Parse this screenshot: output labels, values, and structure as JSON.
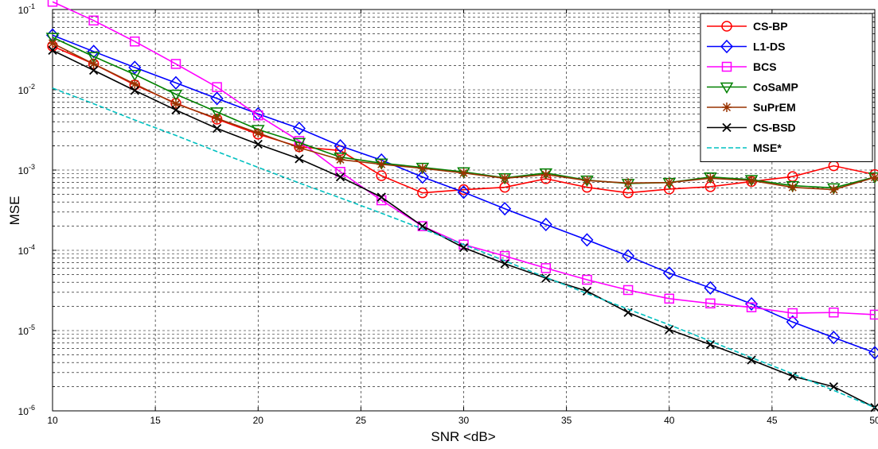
{
  "chart_data": {
    "type": "line",
    "xlabel": "SNR <dB>",
    "ylabel": "MSE",
    "xlim": [
      10,
      50
    ],
    "ylim": [
      1e-06,
      0.1
    ],
    "yscale": "log",
    "x_ticks": [
      10,
      15,
      20,
      25,
      30,
      35,
      40,
      45,
      50
    ],
    "y_ticks": [
      {
        "base": "10",
        "exp": "-6",
        "value": 1e-06
      },
      {
        "base": "10",
        "exp": "-5",
        "value": 1e-05
      },
      {
        "base": "10",
        "exp": "-4",
        "value": 0.0001
      },
      {
        "base": "10",
        "exp": "-3",
        "value": 0.001
      },
      {
        "base": "10",
        "exp": "-2",
        "value": 0.01
      },
      {
        "base": "10",
        "exp": "-1",
        "value": 0.1
      }
    ],
    "grid": true,
    "legend_position": "top-right",
    "x": [
      10,
      12,
      14,
      16,
      18,
      20,
      22,
      24,
      26,
      28,
      30,
      32,
      34,
      36,
      38,
      40,
      42,
      44,
      46,
      48,
      50
    ],
    "series": [
      {
        "name": "CS-BP",
        "color": "#ff0000",
        "marker": "circle",
        "dash": "solid",
        "values": [
          0.035,
          0.021,
          0.0115,
          0.0068,
          0.0043,
          0.0028,
          0.00195,
          0.00175,
          0.00085,
          0.00052,
          0.00057,
          0.00061,
          0.00078,
          0.00061,
          0.00052,
          0.00058,
          0.00062,
          0.00072,
          0.00083,
          0.00113,
          0.00088
        ]
      },
      {
        "name": "L1-DS",
        "color": "#0000ff",
        "marker": "diamond",
        "dash": "solid",
        "values": [
          0.048,
          0.03,
          0.019,
          0.0122,
          0.0078,
          0.005,
          0.0033,
          0.002,
          0.00133,
          0.00082,
          0.00053,
          0.00033,
          0.00021,
          0.000135,
          8.5e-05,
          5.2e-05,
          3.4e-05,
          2.15e-05,
          1.28e-05,
          8.2e-06,
          5.3e-06
        ]
      },
      {
        "name": "BCS",
        "color": "#ff00ff",
        "marker": "square",
        "dash": "solid",
        "values": [
          0.125,
          0.073,
          0.04,
          0.021,
          0.0108,
          0.0048,
          0.0023,
          0.00095,
          0.00042,
          0.0002,
          0.000118,
          8.5e-05,
          6e-05,
          4.3e-05,
          3.2e-05,
          2.5e-05,
          2.18e-05,
          1.95e-05,
          1.65e-05,
          1.68e-05,
          1.58e-05
        ]
      },
      {
        "name": "CoSaMP",
        "color": "#008000",
        "marker": "triangle-down",
        "dash": "solid",
        "values": [
          0.045,
          0.026,
          0.0155,
          0.0088,
          0.0053,
          0.0032,
          0.0022,
          0.00145,
          0.00122,
          0.00108,
          0.00095,
          0.0008,
          0.00092,
          0.00075,
          0.00068,
          0.0007,
          0.00082,
          0.00076,
          0.00064,
          0.0006,
          0.00082
        ]
      },
      {
        "name": "SuPrEM",
        "color": "#993300",
        "marker": "asterisk",
        "dash": "solid",
        "values": [
          0.038,
          0.021,
          0.0118,
          0.0067,
          0.0044,
          0.0029,
          0.0019,
          0.00135,
          0.00118,
          0.00105,
          0.00092,
          0.00079,
          0.00088,
          0.00074,
          0.00069,
          0.0007,
          0.00079,
          0.00074,
          0.00061,
          0.00057,
          0.00081
        ]
      },
      {
        "name": "CS-BSD",
        "color": "#000000",
        "marker": "x",
        "dash": "solid",
        "values": [
          0.031,
          0.0175,
          0.0098,
          0.0056,
          0.0033,
          0.0021,
          0.00138,
          0.00082,
          0.00046,
          0.0002,
          0.000108,
          6.8e-05,
          4.5e-05,
          3.1e-05,
          1.68e-05,
          1.03e-05,
          6.7e-06,
          4.3e-06,
          2.7e-06,
          2e-06,
          1.1e-06
        ]
      },
      {
        "name": "MSE*",
        "color": "#00c0c0",
        "marker": "none",
        "dash": "dashed",
        "values": [
          0.0105,
          0.0067,
          0.0042,
          0.0027,
          0.0017,
          0.00108,
          0.00069,
          0.00045,
          0.00029,
          0.000185,
          0.000118,
          7.4e-05,
          4.6e-05,
          2.9e-05,
          1.85e-05,
          1.18e-05,
          7.4e-06,
          4.6e-06,
          2.9e-06,
          1.8e-06,
          1.1e-06
        ]
      }
    ]
  }
}
